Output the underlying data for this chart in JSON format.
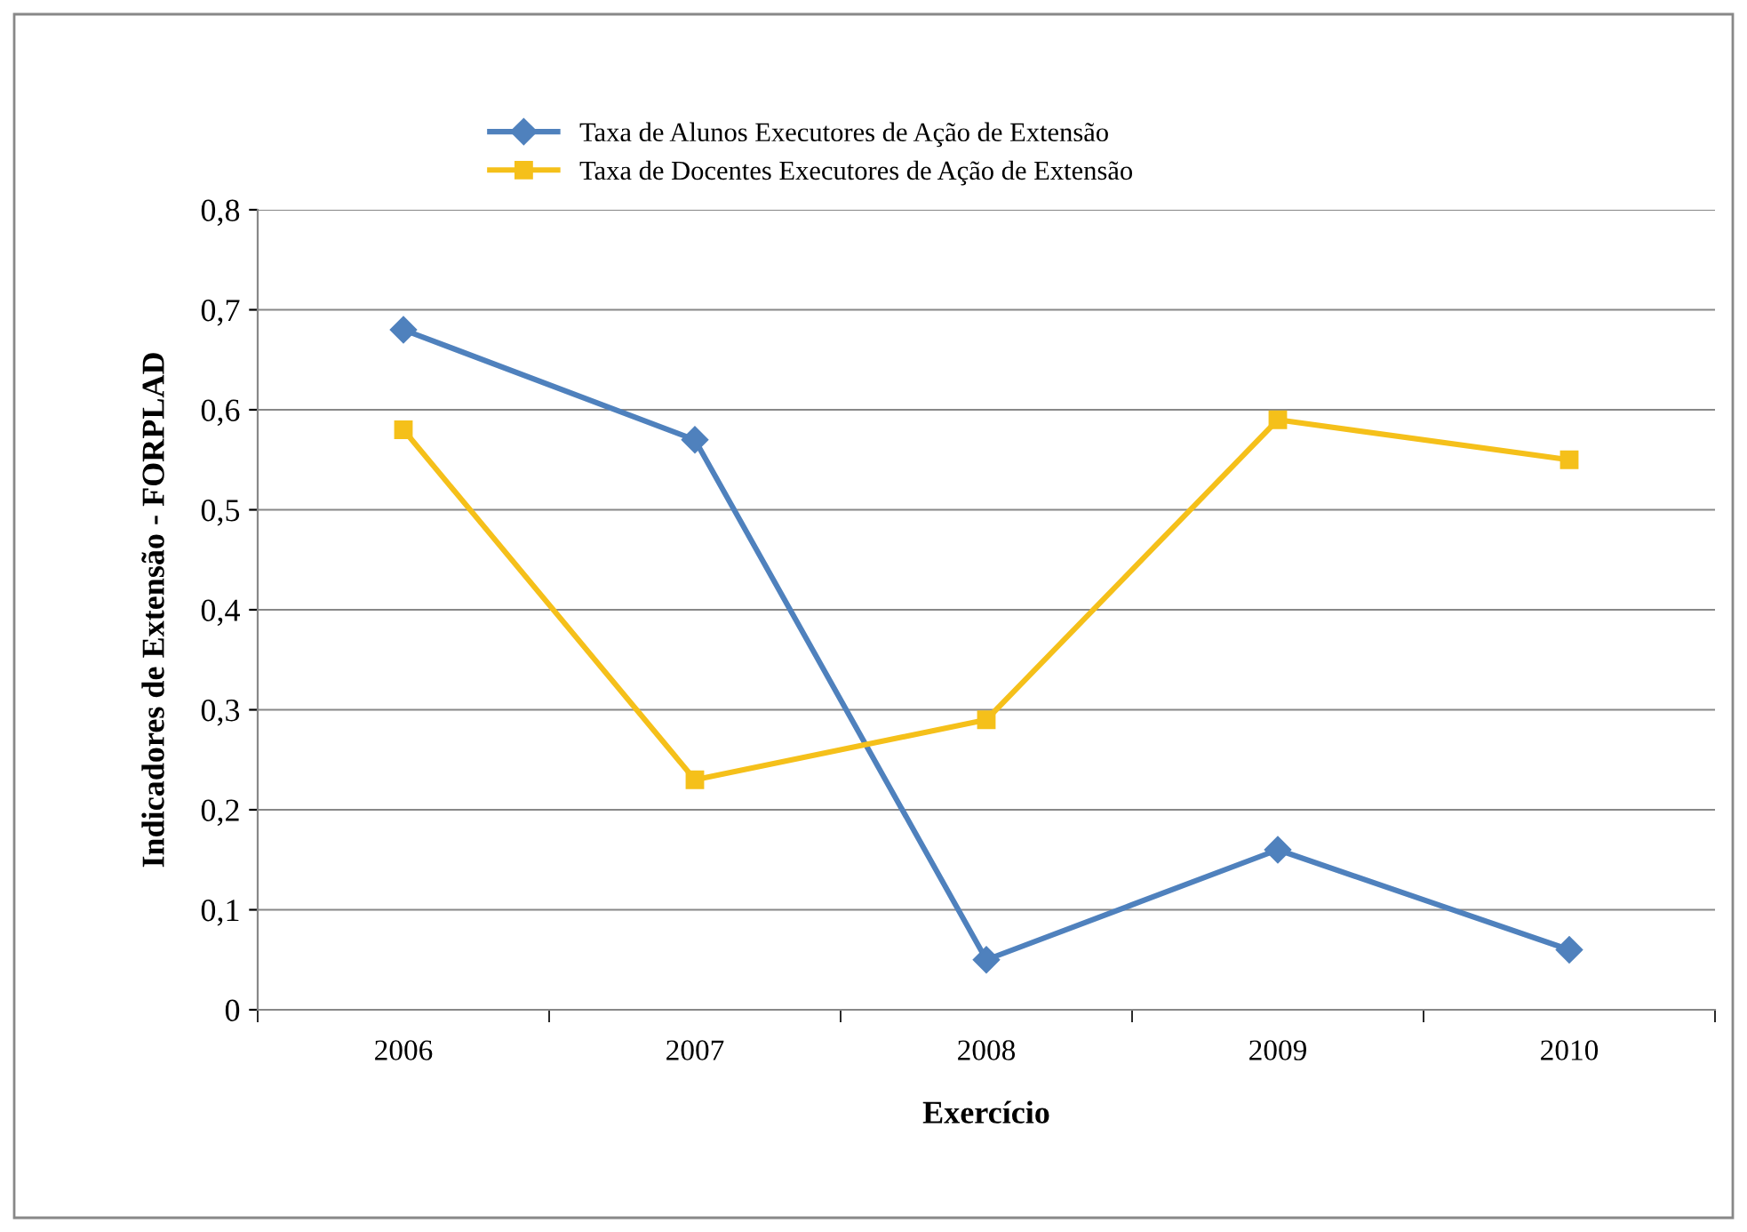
{
  "chart_data": {
    "type": "line",
    "xlabel": "Exercício",
    "ylabel": "Indicadores de Extensão - FORPLAD",
    "categories": [
      "2006",
      "2007",
      "2008",
      "2009",
      "2010"
    ],
    "series": [
      {
        "name": "Taxa de Alunos Executores de Ação de Extensão",
        "color": "#4f81bd",
        "marker": "diamond",
        "values": [
          0.68,
          0.57,
          0.05,
          0.16,
          0.06
        ]
      },
      {
        "name": "Taxa de Docentes Executores de Ação de Extensão",
        "color": "#f5c01a",
        "marker": "square",
        "values": [
          0.58,
          0.23,
          0.29,
          0.59,
          0.55
        ]
      }
    ],
    "ylim": [
      0,
      0.8
    ],
    "yticks": [
      0,
      {
        "value": 0.1,
        "label": "0,1"
      },
      {
        "value": 0.2,
        "label": "0,2"
      },
      {
        "value": 0.3,
        "label": "0,3"
      },
      {
        "value": 0.4,
        "label": "0,4"
      },
      {
        "value": 0.5,
        "label": "0,5"
      },
      {
        "value": 0.6,
        "label": "0,6"
      },
      {
        "value": 0.7,
        "label": "0,7"
      },
      {
        "value": 0.8,
        "label": "0,8"
      }
    ],
    "grid": "y",
    "legend": "top",
    "line_style": "solid"
  }
}
